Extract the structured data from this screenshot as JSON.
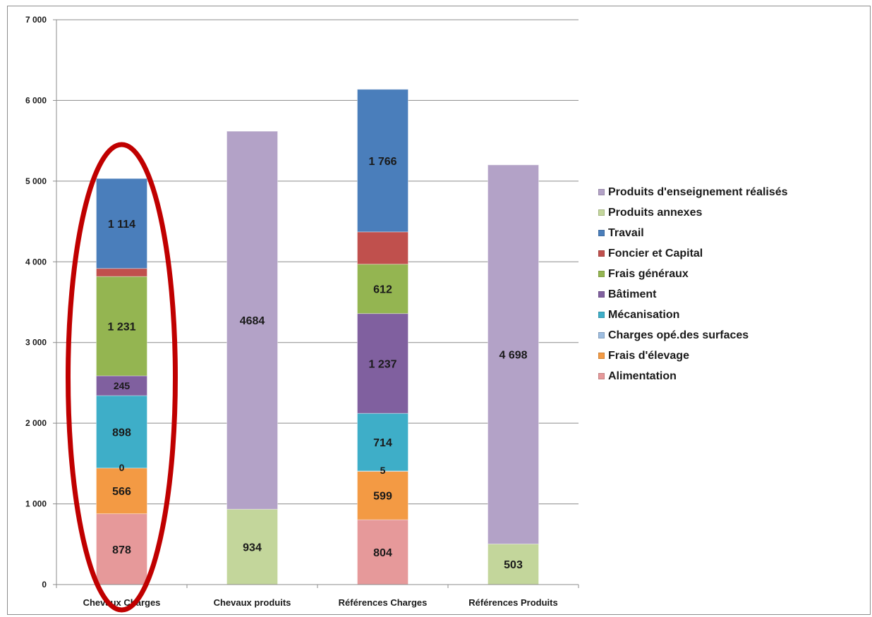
{
  "chart_data": {
    "type": "bar",
    "stacked": true,
    "categories": [
      "Chevaux Charges",
      "Chevaux produits",
      "Références Charges",
      "Références Produits"
    ],
    "ylim": [
      0,
      7000
    ],
    "yticks": [
      "0",
      "1 000",
      "2 000",
      "3 000",
      "4 000",
      "5 000",
      "6 000",
      "7 000"
    ],
    "ytick_values": [
      0,
      1000,
      2000,
      3000,
      4000,
      5000,
      6000,
      7000
    ],
    "grid": true,
    "legend_position": "right",
    "series": [
      {
        "name": "Alimentation",
        "color": "#e6999a",
        "values": [
          878,
          null,
          804,
          null
        ],
        "labels": [
          "878",
          "",
          "804",
          ""
        ]
      },
      {
        "name": "Frais d'élevage",
        "color": "#f39a44",
        "values": [
          566,
          null,
          599,
          null
        ],
        "labels": [
          "566",
          "",
          "599",
          ""
        ]
      },
      {
        "name": "Charges opé.des surfaces",
        "color": "#9dbde0",
        "values": [
          0,
          null,
          5,
          null
        ],
        "labels": [
          "0",
          "",
          "5",
          ""
        ]
      },
      {
        "name": "Mécanisation",
        "color": "#3eaec8",
        "values": [
          898,
          null,
          714,
          null
        ],
        "labels": [
          "898",
          "",
          "714",
          ""
        ]
      },
      {
        "name": "Bâtiment",
        "color": "#80609f",
        "values": [
          245,
          null,
          1237,
          null
        ],
        "labels": [
          "245",
          "",
          "1 237",
          ""
        ]
      },
      {
        "name": "Frais généraux",
        "color": "#94b551",
        "values": [
          1231,
          null,
          612,
          null
        ],
        "labels": [
          "1 231",
          "",
          "612",
          ""
        ]
      },
      {
        "name": "Foncier et Capital",
        "color": "#c0504d",
        "values": [
          100,
          null,
          400,
          null
        ],
        "labels": [
          "",
          "",
          "",
          ""
        ]
      },
      {
        "name": "Travail",
        "color": "#4a7ebb",
        "values": [
          1114,
          null,
          1766,
          null
        ],
        "labels": [
          "1 114",
          "",
          "1 766",
          ""
        ]
      },
      {
        "name": "Produits annexes",
        "color": "#c3d69b",
        "values": [
          null,
          934,
          null,
          503
        ],
        "labels": [
          "",
          "934",
          "",
          "503"
        ]
      },
      {
        "name": "Produits d'enseignement réalisés",
        "color": "#b3a2c7",
        "values": [
          null,
          4684,
          null,
          4698
        ],
        "labels": [
          "",
          "4684",
          "",
          "4 698"
        ]
      }
    ],
    "legend_order": [
      "Produits d'enseignement réalisés",
      "Produits annexes",
      "Travail",
      "Foncier et Capital",
      "Frais généraux",
      "Bâtiment",
      "Mécanisation",
      "Charges opé.des surfaces",
      "Frais d'élevage",
      "Alimentation"
    ],
    "annotations": [
      {
        "type": "ellipse",
        "color": "#c00000",
        "encloses_category": "Chevaux Charges"
      }
    ]
  }
}
